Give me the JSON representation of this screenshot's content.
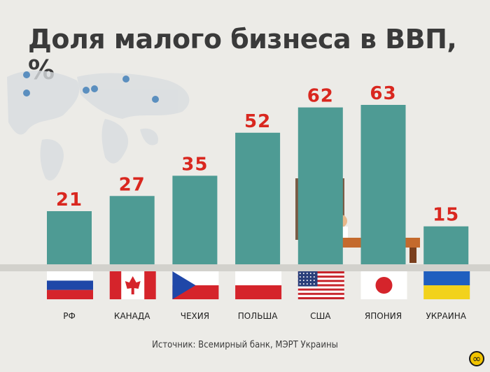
{
  "title": "Доля малого бизнеса в ВВП, %",
  "source": "Источник: Всемирный банк, МЭРТ Украины",
  "colors": {
    "bar": "#4e9b94",
    "value_label": "#d9271f",
    "axis_label": "#1f1f1f",
    "background": "#ecebe7"
  },
  "chart_data": {
    "type": "bar",
    "title": "Доля малого бизнеса в ВВП, %",
    "xlabel": "",
    "ylabel": "",
    "categories": [
      "РФ",
      "КАНАДА",
      "ЧЕХИЯ",
      "ПОЛЬША",
      "США",
      "ЯПОНИЯ",
      "УКРАИНА"
    ],
    "values": [
      21,
      27,
      35,
      52,
      62,
      63,
      15
    ],
    "value_labels": [
      "21",
      "27",
      "35",
      "52",
      "62",
      "63",
      "15"
    ],
    "flags": [
      "russia-flag",
      "canada-flag",
      "czech-flag",
      "poland-flag",
      "usa-flag",
      "japan-flag",
      "ukraine-flag"
    ],
    "ylim": [
      0,
      63
    ],
    "grid": false,
    "legend": "none"
  }
}
